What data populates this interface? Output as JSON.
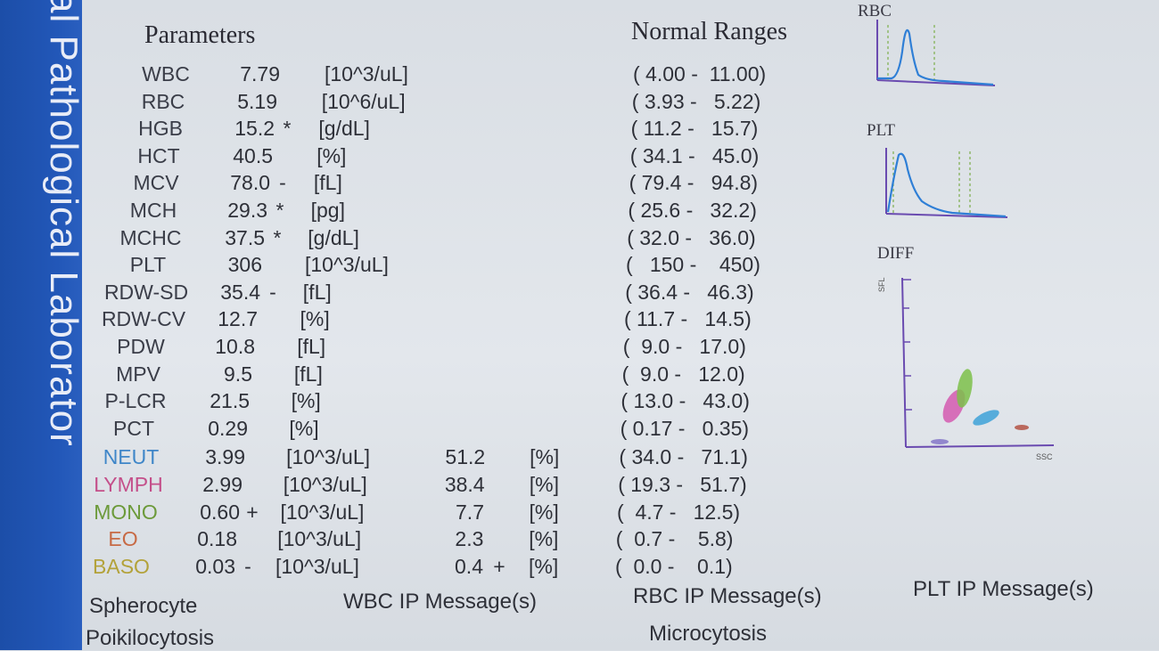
{
  "sidebar": {
    "text": "al Pathological Laborator"
  },
  "headers": {
    "parameters": "Parameters",
    "normal_ranges": "Normal Ranges"
  },
  "rows": [
    {
      "name": "WBC",
      "value": "7.79",
      "flag": "",
      "unit": "[10^3/uL]",
      "pct": "",
      "pflag": "",
      "pct_unit": "",
      "range": "( 4.00 -  11.00)",
      "color": "#3a3d48"
    },
    {
      "name": "RBC",
      "value": "5.19",
      "flag": "",
      "unit": "[10^6/uL]",
      "pct": "",
      "pflag": "",
      "pct_unit": "",
      "range": "( 3.93 -   5.22)",
      "color": "#3a3d48"
    },
    {
      "name": "HGB",
      "value": "15.2",
      "flag": "*",
      "unit": "[g/dL]",
      "pct": "",
      "pflag": "",
      "pct_unit": "",
      "range": "( 11.2 -   15.7)",
      "color": "#3a3d48"
    },
    {
      "name": "HCT",
      "value": "40.5",
      "flag": "",
      "unit": "[%]",
      "pct": "",
      "pflag": "",
      "pct_unit": "",
      "range": "( 34.1 -   45.0)",
      "color": "#3a3d48"
    },
    {
      "name": "MCV",
      "value": "78.0",
      "flag": "-",
      "unit": "[fL]",
      "pct": "",
      "pflag": "",
      "pct_unit": "",
      "range": "( 79.4 -   94.8)",
      "color": "#3a3d48"
    },
    {
      "name": "MCH",
      "value": "29.3",
      "flag": "*",
      "unit": "[pg]",
      "pct": "",
      "pflag": "",
      "pct_unit": "",
      "range": "( 25.6 -   32.2)",
      "color": "#3a3d48"
    },
    {
      "name": "MCHC",
      "value": "37.5",
      "flag": "*",
      "unit": "[g/dL]",
      "pct": "",
      "pflag": "",
      "pct_unit": "",
      "range": "( 32.0 -   36.0)",
      "color": "#3a3d48"
    },
    {
      "name": "PLT",
      "value": "306",
      "flag": "",
      "unit": "[10^3/uL]",
      "pct": "",
      "pflag": "",
      "pct_unit": "",
      "range": "(   150 -    450)",
      "color": "#3a3d48"
    },
    {
      "name": "RDW-SD",
      "value": "35.4",
      "flag": "-",
      "unit": "[fL]",
      "pct": "",
      "pflag": "",
      "pct_unit": "",
      "range": "( 36.4 -   46.3)",
      "color": "#3a3d48"
    },
    {
      "name": "RDW-CV",
      "value": "12.7",
      "flag": "",
      "unit": "[%]",
      "pct": "",
      "pflag": "",
      "pct_unit": "",
      "range": "( 11.7 -   14.5)",
      "color": "#3a3d48"
    },
    {
      "name": "PDW",
      "value": "10.8",
      "flag": "",
      "unit": "[fL]",
      "pct": "",
      "pflag": "",
      "pct_unit": "",
      "range": "(  9.0 -   17.0)",
      "color": "#3a3d48"
    },
    {
      "name": "MPV",
      "value": "9.5",
      "flag": "",
      "unit": "[fL]",
      "pct": "",
      "pflag": "",
      "pct_unit": "",
      "range": "(  9.0 -   12.0)",
      "color": "#3a3d48"
    },
    {
      "name": "P-LCR",
      "value": "21.5",
      "flag": "",
      "unit": "[%]",
      "pct": "",
      "pflag": "",
      "pct_unit": "",
      "range": "( 13.0 -   43.0)",
      "color": "#3a3d48"
    },
    {
      "name": "PCT",
      "value": "0.29",
      "flag": "",
      "unit": "[%]",
      "pct": "",
      "pflag": "",
      "pct_unit": "",
      "range": "( 0.17 -   0.35)",
      "color": "#3a3d48"
    },
    {
      "name": "NEUT",
      "value": "3.99",
      "flag": "",
      "unit": "[10^3/uL]",
      "pct": "51.2",
      "pflag": "",
      "pct_unit": "[%]",
      "range": "( 34.0 -   71.1)",
      "color": "#3f86c8"
    },
    {
      "name": "LYMPH",
      "value": "2.99",
      "flag": "",
      "unit": "[10^3/uL]",
      "pct": "38.4",
      "pflag": "",
      "pct_unit": "[%]",
      "range": "( 19.3 -   51.7)",
      "color": "#c44f8a"
    },
    {
      "name": "MONO",
      "value": "0.60",
      "flag": "+",
      "unit": "[10^3/uL]",
      "pct": "7.7",
      "pflag": "",
      "pct_unit": "[%]",
      "range": "(  4.7 -   12.5)",
      "color": "#6c9a3a"
    },
    {
      "name": "EO",
      "value": "0.18",
      "flag": "",
      "unit": "[10^3/uL]",
      "pct": "2.3",
      "pflag": "",
      "pct_unit": "[%]",
      "range": "(  0.7 -    5.8)",
      "color": "#c76a45"
    },
    {
      "name": "BASO",
      "value": "0.03",
      "flag": "-",
      "unit": "[10^3/uL]",
      "pct": "0.4",
      "pflag": "+",
      "pct_unit": "[%]",
      "range": "(  0.0 -    0.1)",
      "color": "#b3a23a"
    }
  ],
  "graphs": {
    "rbc_label": "RBC",
    "plt_label": "PLT",
    "diff_label": "DIFF",
    "diff_y_axis": "SFL",
    "diff_x_axis": "SSC",
    "line_color": "#2f7fd6",
    "axis_color": "#6a4bb0"
  },
  "messages": {
    "wbc_title": "WBC IP Message(s)",
    "rbc_title": "RBC IP Message(s)",
    "plt_title": "PLT IP Message(s)",
    "left_items": [
      "Spherocyte",
      "Poikilocytosis"
    ],
    "rbc_items": [
      "Microcytosis"
    ]
  }
}
